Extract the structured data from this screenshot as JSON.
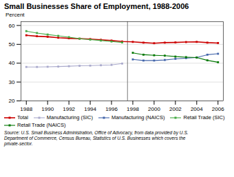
{
  "chart_data": {
    "type": "line",
    "title": "Small Businesses Share of Employment, 1988-2006",
    "ylabel": "Percent",
    "x": [
      1988,
      1989,
      1990,
      1991,
      1992,
      1993,
      1994,
      1995,
      1996,
      1997,
      1998,
      1999,
      2000,
      2001,
      2002,
      2003,
      2004,
      2005,
      2006
    ],
    "series": [
      {
        "name": "Total",
        "color": "#cc0000",
        "values": [
          54.8,
          54.3,
          54.0,
          53.5,
          53.2,
          53.0,
          52.8,
          52.4,
          52.0,
          51.5,
          51.3,
          50.9,
          50.6,
          50.9,
          51.0,
          51.2,
          51.3,
          50.9,
          50.7
        ]
      },
      {
        "name": "Manufacturing (SIC)",
        "color": "#aaaacc",
        "values": [
          38.0,
          38.0,
          38.1,
          38.2,
          38.4,
          38.6,
          38.7,
          38.9,
          39.1,
          39.8,
          null,
          null,
          null,
          null,
          null,
          null,
          null,
          null,
          null
        ]
      },
      {
        "name": "Manufacturing (NAICS)",
        "color": "#4466aa",
        "values": [
          null,
          null,
          null,
          null,
          null,
          null,
          null,
          null,
          null,
          null,
          42.0,
          41.4,
          41.4,
          41.7,
          42.3,
          42.7,
          43.0,
          44.5,
          45.0
        ]
      },
      {
        "name": "Retail Trade (SIC)",
        "color": "#44aa44",
        "values": [
          57.0,
          56.0,
          55.2,
          54.5,
          53.8,
          53.0,
          52.5,
          52.0,
          51.5,
          51.0,
          null,
          null,
          null,
          null,
          null,
          null,
          null,
          null,
          null
        ]
      },
      {
        "name": "Retail Trade (NAICS)",
        "color": "#007700",
        "values": [
          null,
          null,
          null,
          null,
          null,
          null,
          null,
          null,
          null,
          null,
          45.5,
          44.5,
          44.2,
          44.0,
          43.5,
          43.2,
          43.0,
          41.5,
          40.5
        ]
      }
    ],
    "xlim": [
      1987.5,
      2006.5
    ],
    "xticks": [
      1988,
      1990,
      1992,
      1994,
      1996,
      1998,
      2000,
      2002,
      2004,
      2006
    ],
    "ylim": [
      20,
      62
    ],
    "yticks": [
      20,
      30,
      40,
      50,
      60
    ],
    "grid": "y",
    "marker": "square",
    "legend": "bottom",
    "annotations": [
      {
        "type": "vline",
        "x": 1997.5
      }
    ],
    "source": "Source: U.S. Small Business Administration, Office of Advocacy, from data provided by U.S.\nDepartment of Commerce, Census Bureau, Statistics of U.S. Businesses which covers the\nprivate-sector."
  }
}
